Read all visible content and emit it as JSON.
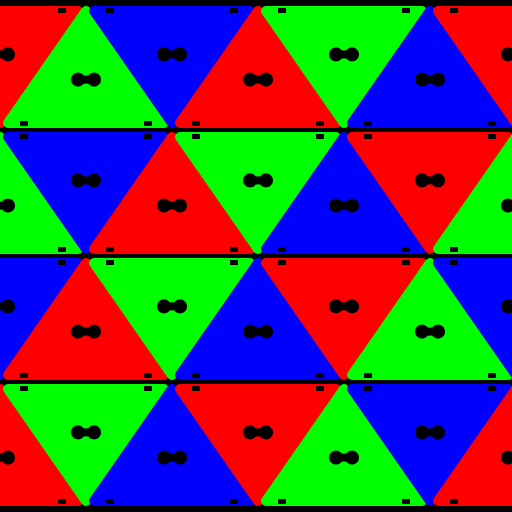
{
  "pattern": {
    "background": "#000000",
    "hole_color": "#000000",
    "colors": {
      "R": "#ff0000",
      "G": "#00ff00",
      "B": "#0000ff"
    },
    "rows": [
      [
        "R",
        "G",
        "B",
        "R",
        "G",
        "B",
        "R"
      ],
      [
        "G",
        "B",
        "R",
        "G",
        "B",
        "R",
        "G"
      ],
      [
        "B",
        "R",
        "G",
        "B",
        "R",
        "G",
        "B"
      ],
      [
        "R",
        "G",
        "B",
        "R",
        "G",
        "B",
        "R"
      ]
    ]
  }
}
